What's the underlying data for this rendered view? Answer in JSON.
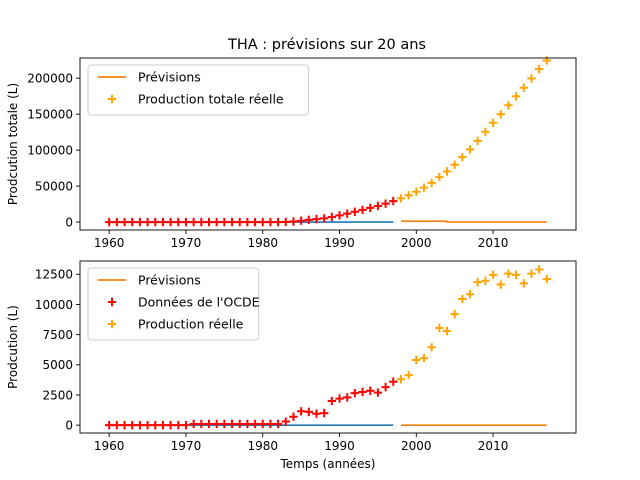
{
  "figure_title": "THA : prévisions sur 20 ans",
  "chart_data": [
    {
      "type": "scatter",
      "title": "THA : prévisions sur 20 ans",
      "xlabel": "",
      "ylabel": "Prodcution totale (L)",
      "xlim": [
        1956.2,
        2020.8
      ],
      "ylim": [
        -11000,
        228000
      ],
      "xticks": [
        1960,
        1970,
        1980,
        1990,
        2000,
        2010
      ],
      "yticks": [
        0,
        50000,
        100000,
        150000,
        200000
      ],
      "ytick_labels": [
        "0",
        "50000",
        "100000",
        "150000",
        "200000"
      ],
      "legend_position": "top-left",
      "legend": [
        {
          "label": "Prévisions",
          "marker": "line",
          "color": "#ff7f0e"
        },
        {
          "label": "Production totale réelle",
          "marker": "plus",
          "color": "#ffa500"
        }
      ],
      "lines": [
        {
          "color": "#1f77b4",
          "x": [
            1960,
            1997
          ],
          "y": [
            0,
            0
          ]
        },
        {
          "color": "#ff7f0e",
          "x": [
            1998,
            2004,
            2004,
            2017
          ],
          "y": [
            1200,
            1200,
            0,
            0
          ]
        }
      ],
      "series": [
        {
          "color": "#ff0000",
          "x": [
            1960,
            1961,
            1962,
            1963,
            1964,
            1965,
            1966,
            1967,
            1968,
            1969,
            1970,
            1971,
            1972,
            1973,
            1974,
            1975,
            1976,
            1977,
            1978,
            1979,
            1980,
            1981,
            1982,
            1983,
            1984,
            1985,
            1986,
            1987,
            1988,
            1989,
            1990,
            1991,
            1992,
            1993,
            1994,
            1995,
            1996,
            1997
          ],
          "y": [
            0,
            0,
            0,
            0,
            0,
            0,
            0,
            0,
            0,
            0,
            0,
            0,
            0,
            0,
            0,
            0,
            0,
            0,
            0,
            0,
            0,
            0,
            0,
            200,
            800,
            1900,
            3100,
            4100,
            5100,
            7100,
            9400,
            11700,
            14300,
            16900,
            19700,
            22400,
            25600,
            29200
          ]
        },
        {
          "color": "#ffa500",
          "x": [
            1998,
            1999,
            2000,
            2001,
            2002,
            2003,
            2004,
            2005,
            2006,
            2007,
            2008,
            2009,
            2010,
            2011,
            2012,
            2013,
            2014,
            2015,
            2016,
            2017
          ],
          "y": [
            33000,
            37300,
            42200,
            47800,
            54400,
            62500,
            70300,
            79600,
            90200,
            101000,
            112800,
            125500,
            138000,
            149800,
            162300,
            174800,
            186700,
            199500,
            212500,
            224600
          ]
        }
      ]
    },
    {
      "type": "scatter",
      "title": "",
      "xlabel": "Temps (années)",
      "ylabel": "Prodcution (L)",
      "xlim": [
        1956.2,
        2020.8
      ],
      "ylim": [
        -650,
        13600
      ],
      "xticks": [
        1960,
        1970,
        1980,
        1990,
        2000,
        2010
      ],
      "yticks": [
        0,
        2500,
        5000,
        7500,
        10000,
        12500
      ],
      "ytick_labels": [
        "0",
        "2500",
        "5000",
        "7500",
        "10000",
        "12500"
      ],
      "legend_position": "top-left",
      "legend": [
        {
          "label": "Prévisions",
          "marker": "line",
          "color": "#ff7f0e"
        },
        {
          "label": "Données de l'OCDE",
          "marker": "plus",
          "color": "#ff0000"
        },
        {
          "label": "Production réelle",
          "marker": "plus",
          "color": "#ffa500"
        }
      ],
      "lines": [
        {
          "color": "#1f77b4",
          "x": [
            1960,
            1997
          ],
          "y": [
            0,
            0
          ]
        },
        {
          "color": "#ff7f0e",
          "x": [
            1998,
            2017
          ],
          "y": [
            0,
            0
          ]
        }
      ],
      "series": [
        {
          "color": "#ff0000",
          "x": [
            1960,
            1961,
            1962,
            1963,
            1964,
            1965,
            1966,
            1967,
            1968,
            1969,
            1970,
            1971,
            1972,
            1973,
            1974,
            1975,
            1976,
            1977,
            1978,
            1979,
            1980,
            1981,
            1982,
            1983,
            1984,
            1985,
            1986,
            1987,
            1988,
            1989,
            1990,
            1991,
            1992,
            1993,
            1994,
            1995,
            1996,
            1997
          ],
          "y": [
            0,
            0,
            0,
            0,
            0,
            0,
            0,
            0,
            0,
            0,
            0,
            100,
            100,
            100,
            100,
            100,
            100,
            100,
            100,
            100,
            100,
            100,
            100,
            300,
            700,
            1150,
            1100,
            950,
            1000,
            2000,
            2200,
            2300,
            2650,
            2750,
            2850,
            2700,
            3150,
            3600
          ]
        },
        {
          "color": "#ffa500",
          "x": [
            1998,
            1999,
            2000,
            2001,
            2002,
            2003,
            2004,
            2005,
            2006,
            2007,
            2008,
            2009,
            2010,
            2011,
            2012,
            2013,
            2014,
            2015,
            2016,
            2017
          ],
          "y": [
            3800,
            4150,
            5400,
            5550,
            6450,
            8050,
            7800,
            9200,
            10450,
            10850,
            11850,
            11950,
            12450,
            11650,
            12550,
            12450,
            11750,
            12550,
            12900,
            12100
          ]
        }
      ]
    }
  ]
}
